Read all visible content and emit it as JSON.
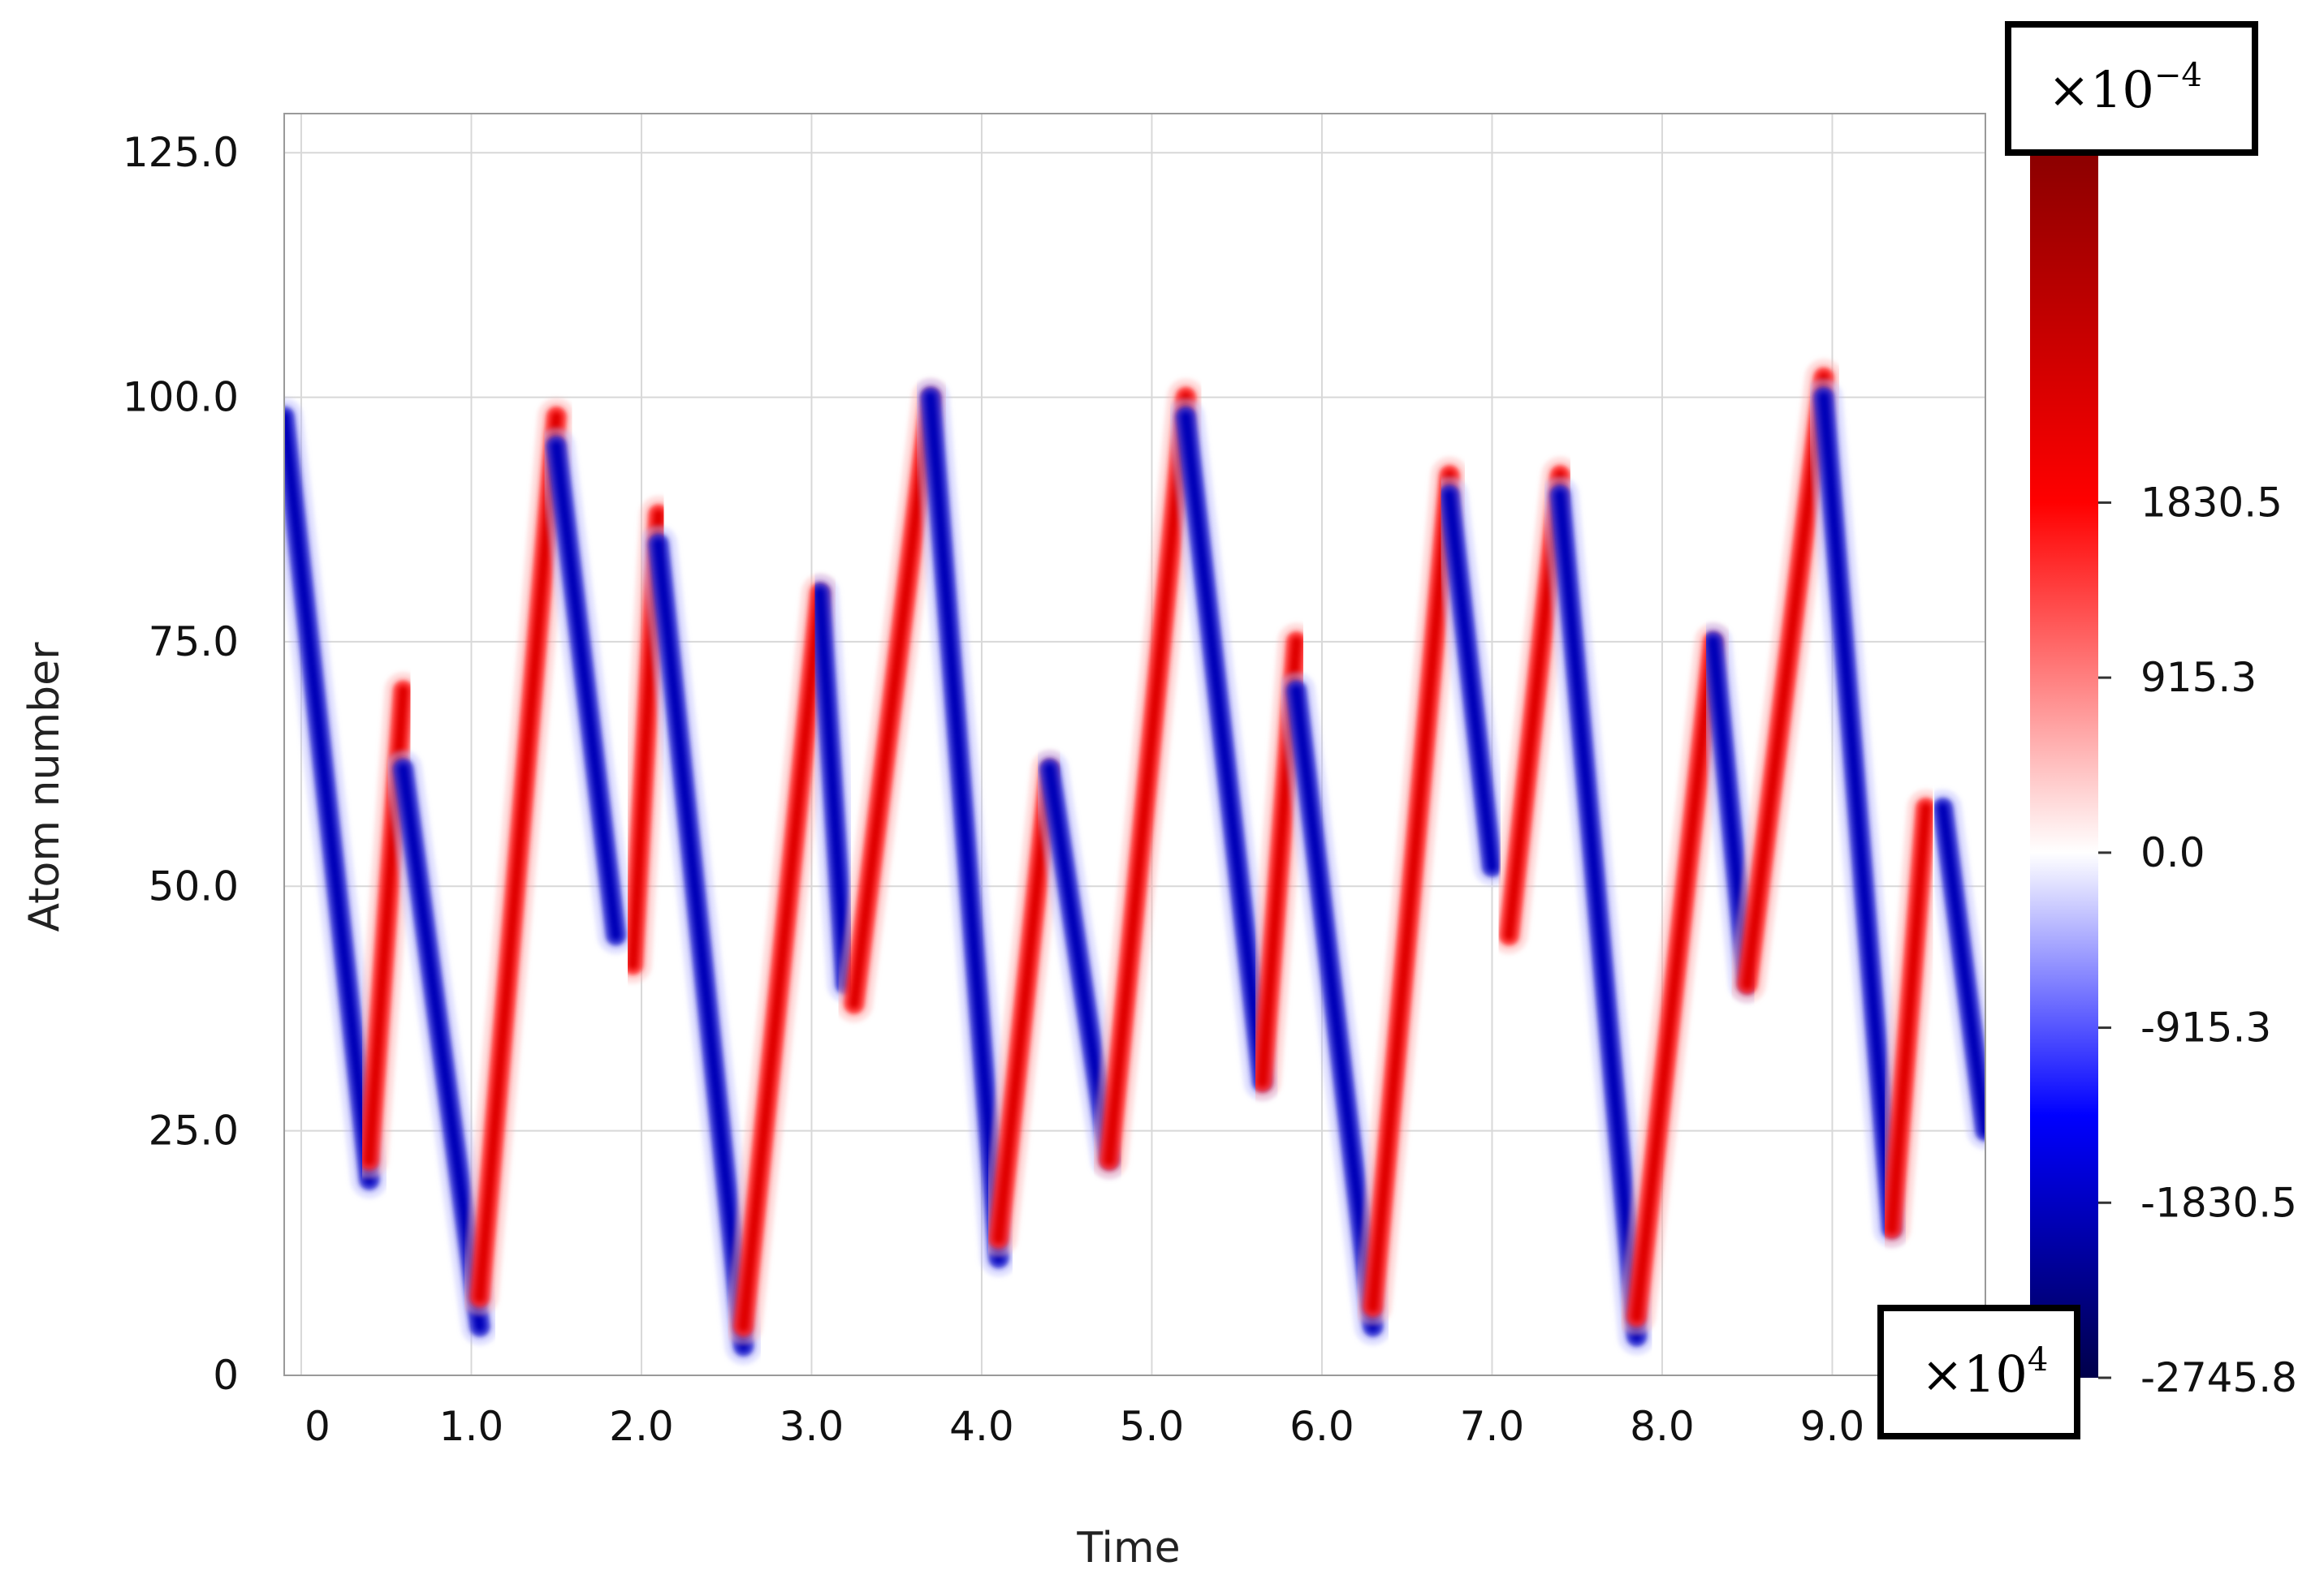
{
  "chart_data": {
    "type": "heatmap",
    "title": "",
    "xlabel": "Time",
    "ylabel": "Atom number",
    "x_ticks": [
      "0",
      "1.0",
      "2.0",
      "3.0",
      "4.0",
      "5.0",
      "6.0",
      "7.0",
      "8.0",
      "9.0"
    ],
    "x_tick_values": [
      0,
      1,
      2,
      3,
      4,
      5,
      6,
      7,
      8,
      9
    ],
    "y_ticks": [
      "0",
      "25.0",
      "50.0",
      "75.0",
      "100.0",
      "125.0"
    ],
    "y_tick_values": [
      0,
      25,
      50,
      75,
      100,
      125
    ],
    "xlim": [
      -0.1,
      9.9
    ],
    "ylim": [
      0,
      129
    ],
    "x_multiplier": {
      "base": "×10",
      "exponent": "4"
    },
    "grid": true,
    "colorbar": {
      "ticks": [
        "1830.5",
        "915.3",
        "0.0",
        "-915.3",
        "-1830.5",
        "-2745.8"
      ],
      "tick_values": [
        1830.5,
        915.3,
        0.0,
        -915.3,
        -1830.5,
        -2745.8
      ],
      "range": [
        -2745.8,
        3661
      ],
      "multiplier": {
        "base": "×10",
        "exponent": "−4"
      },
      "colormap": [
        "#00004a",
        "#0000ff",
        "#ffffff",
        "#ff0000",
        "#8b0000"
      ]
    },
    "series": [
      {
        "sign": "negative",
        "x": [
          -0.1,
          0.4
        ],
        "y": [
          98,
          20
        ]
      },
      {
        "sign": "positive",
        "x": [
          0.4,
          0.6
        ],
        "y": [
          22,
          70
        ]
      },
      {
        "sign": "negative",
        "x": [
          0.6,
          1.05
        ],
        "y": [
          62,
          5
        ]
      },
      {
        "sign": "positive",
        "x": [
          1.05,
          1.5
        ],
        "y": [
          8,
          98
        ]
      },
      {
        "sign": "negative",
        "x": [
          1.5,
          1.85
        ],
        "y": [
          95,
          45
        ]
      },
      {
        "sign": "positive",
        "x": [
          1.95,
          2.1
        ],
        "y": [
          42,
          88
        ]
      },
      {
        "sign": "negative",
        "x": [
          2.1,
          2.6
        ],
        "y": [
          85,
          3
        ]
      },
      {
        "sign": "positive",
        "x": [
          2.6,
          3.05
        ],
        "y": [
          5,
          80
        ]
      },
      {
        "sign": "negative",
        "x": [
          3.05,
          3.2
        ],
        "y": [
          80,
          40
        ]
      },
      {
        "sign": "positive",
        "x": [
          3.25,
          3.7
        ],
        "y": [
          38,
          100
        ]
      },
      {
        "sign": "negative",
        "x": [
          3.7,
          4.1
        ],
        "y": [
          100,
          12
        ]
      },
      {
        "sign": "positive",
        "x": [
          4.1,
          4.4
        ],
        "y": [
          14,
          62
        ]
      },
      {
        "sign": "negative",
        "x": [
          4.4,
          4.75
        ],
        "y": [
          62,
          22
        ]
      },
      {
        "sign": "positive",
        "x": [
          4.75,
          5.2
        ],
        "y": [
          22,
          100
        ]
      },
      {
        "sign": "negative",
        "x": [
          5.2,
          5.65
        ],
        "y": [
          98,
          30
        ]
      },
      {
        "sign": "positive",
        "x": [
          5.65,
          5.85
        ],
        "y": [
          30,
          75
        ]
      },
      {
        "sign": "negative",
        "x": [
          5.85,
          6.3
        ],
        "y": [
          70,
          5
        ]
      },
      {
        "sign": "positive",
        "x": [
          6.3,
          6.75
        ],
        "y": [
          7,
          92
        ]
      },
      {
        "sign": "negative",
        "x": [
          6.75,
          7.0
        ],
        "y": [
          90,
          52
        ]
      },
      {
        "sign": "positive",
        "x": [
          7.1,
          7.4
        ],
        "y": [
          45,
          92
        ]
      },
      {
        "sign": "negative",
        "x": [
          7.4,
          7.85
        ],
        "y": [
          90,
          4
        ]
      },
      {
        "sign": "positive",
        "x": [
          7.85,
          8.3
        ],
        "y": [
          6,
          75
        ]
      },
      {
        "sign": "negative",
        "x": [
          8.3,
          8.5
        ],
        "y": [
          75,
          40
        ]
      },
      {
        "sign": "positive",
        "x": [
          8.5,
          8.95
        ],
        "y": [
          40,
          102
        ]
      },
      {
        "sign": "negative",
        "x": [
          8.95,
          9.35
        ],
        "y": [
          100,
          15
        ]
      },
      {
        "sign": "positive",
        "x": [
          9.35,
          9.55
        ],
        "y": [
          15,
          58
        ]
      },
      {
        "sign": "negative",
        "x": [
          9.65,
          9.9
        ],
        "y": [
          58,
          25
        ]
      }
    ]
  }
}
